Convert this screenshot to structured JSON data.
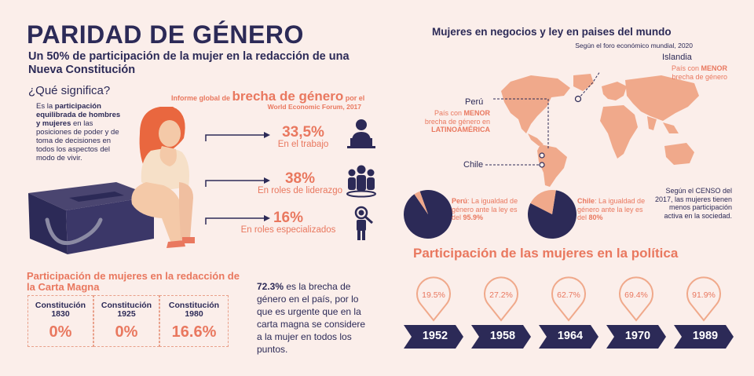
{
  "header": {
    "title": "PARIDAD DE GÉNERO",
    "subtitle": "Un 50% de participación de la mujer en la redacción de una Nueva Constitución"
  },
  "definition": {
    "question": "¿Qué significa?",
    "text_pre": "Es la ",
    "text_bold": "participación equilibrada de hombres y mujeres",
    "text_post": " en las posiciones de poder y de toma de decisiones en todos los aspectos  del modo de vivir."
  },
  "report": {
    "prefix": "Informe global de ",
    "highlight": "brecha de género",
    "suffix": " por el",
    "source": "World Economic Forum, 2017"
  },
  "stats": [
    {
      "value": "33,5%",
      "label": "En el trabajo",
      "icon": "worker-at-laptop-icon"
    },
    {
      "value": "38%",
      "label": "En roles de liderazgo",
      "icon": "group-leadership-icon"
    },
    {
      "value": "16%",
      "label": "En roles especializados",
      "icon": "specialist-magnifier-icon"
    }
  ],
  "carta": {
    "title": "Participación de mujeres en la redacción de la Carta Magna",
    "items": [
      {
        "label": "Constitución 1830",
        "value": "0%"
      },
      {
        "label": "Constitución 1925",
        "value": "0%"
      },
      {
        "label": "Constitución 1980",
        "value": "16.6%"
      }
    ]
  },
  "brecha": {
    "value": "72.3%",
    "text": " es la brecha de género en el país,  por lo que es urgente que en la carta magna se considere a la mujer en todos los puntos."
  },
  "world": {
    "title": "Mujeres en negocios y ley en paises del mundo",
    "source": "Según el foro económico mundial, 2020",
    "iceland": {
      "name": "Islandia",
      "note_pre": "País con ",
      "note_bold": "MENOR",
      "note_post": " brecha de género"
    },
    "peru": {
      "name": "Perú",
      "note_pre": "País con ",
      "note_bold1": "MENOR",
      "note_mid": " brecha de género en ",
      "note_bold2": "LATINOAMÉRICA"
    },
    "chile": {
      "name": "Chile"
    },
    "censo": "Según el CENSO del 2017, las mujeres tienen menos participación activa en la sociedad."
  },
  "pies": [
    {
      "country": "Perú",
      "text": ": La igualdad de género ante la ley es del ",
      "value": "95.9%",
      "fraction": 0.959
    },
    {
      "country": "Chile",
      "text": ": La igualdad de género ante la ley es del ",
      "value": "80%",
      "fraction": 0.8
    }
  ],
  "politica": {
    "title": "Participación de las mujeres en la política",
    "items": [
      {
        "year": "1952",
        "pct": "19.5%"
      },
      {
        "year": "1958",
        "pct": "27.2%"
      },
      {
        "year": "1964",
        "pct": "62.7%"
      },
      {
        "year": "1970",
        "pct": "69.4%"
      },
      {
        "year": "1989",
        "pct": "91.9%"
      }
    ]
  },
  "colors": {
    "navy": "#2c2a57",
    "coral": "#e9785f",
    "peach": "#f0a98b",
    "background": "#fbeeea"
  }
}
